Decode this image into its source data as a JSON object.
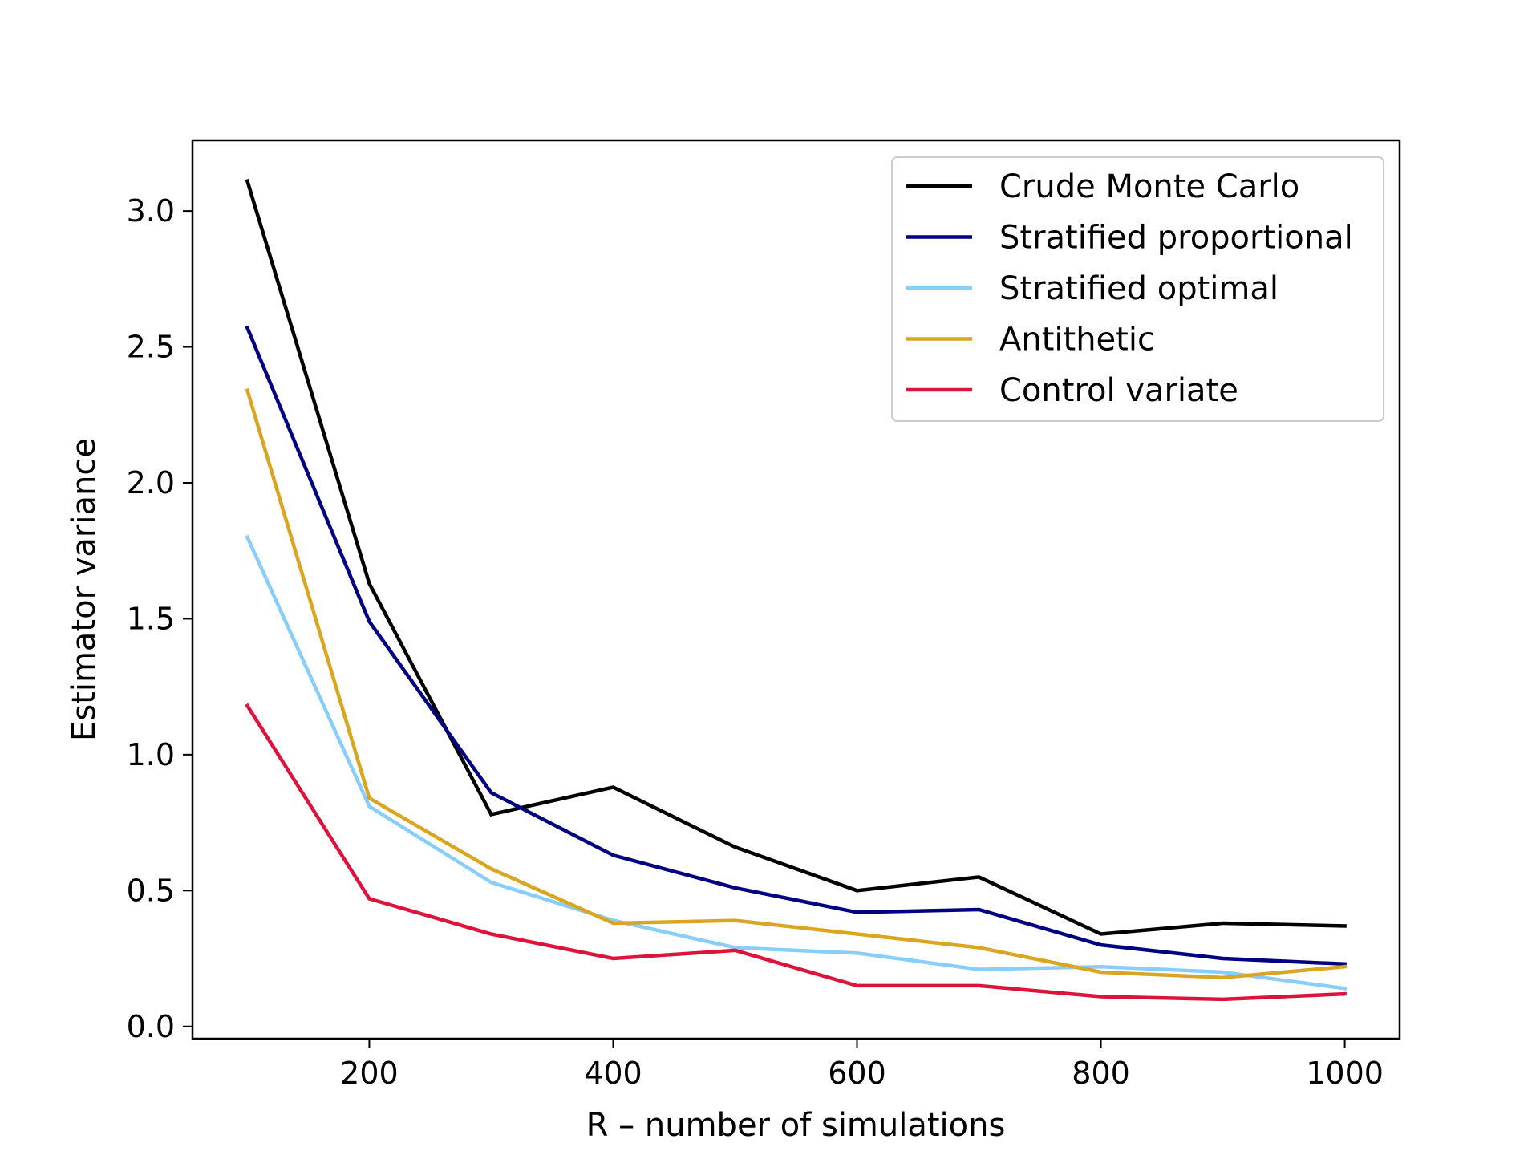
{
  "chart_data": {
    "type": "line",
    "title": "",
    "xlabel": "R – number of simulations",
    "ylabel": "Estimator variance",
    "x": [
      100,
      200,
      300,
      400,
      500,
      600,
      700,
      800,
      900,
      1000
    ],
    "xlim": [
      55,
      1045
    ],
    "ylim": [
      -0.045,
      3.26
    ],
    "xticks": [
      200,
      400,
      600,
      800,
      1000
    ],
    "xtick_labels": [
      "200",
      "400",
      "600",
      "800",
      "1000"
    ],
    "yticks": [
      0.0,
      0.5,
      1.0,
      1.5,
      2.0,
      2.5,
      3.0
    ],
    "ytick_labels": [
      "0.0",
      "0.5",
      "1.0",
      "1.5",
      "2.0",
      "2.5",
      "3.0"
    ],
    "grid": false,
    "legend_position": "top-right",
    "series": [
      {
        "name": "Crude Monte Carlo",
        "color": "#000000",
        "values": [
          3.11,
          1.63,
          0.78,
          0.88,
          0.66,
          0.5,
          0.55,
          0.34,
          0.38,
          0.37
        ]
      },
      {
        "name": "Stratified proportional",
        "color": "#000080",
        "values": [
          2.57,
          1.49,
          0.86,
          0.63,
          0.51,
          0.42,
          0.43,
          0.3,
          0.25,
          0.23
        ]
      },
      {
        "name": "Stratified optimal",
        "color": "#87CEFA",
        "values": [
          1.8,
          0.81,
          0.53,
          0.39,
          0.29,
          0.27,
          0.21,
          0.22,
          0.2,
          0.14
        ]
      },
      {
        "name": "Antithetic",
        "color": "#DAA520",
        "values": [
          2.34,
          0.84,
          0.58,
          0.38,
          0.39,
          0.34,
          0.29,
          0.2,
          0.18,
          0.22
        ]
      },
      {
        "name": "Control variate",
        "color": "#DC143C",
        "values": [
          1.18,
          0.47,
          0.34,
          0.25,
          0.28,
          0.15,
          0.15,
          0.11,
          0.1,
          0.12
        ]
      }
    ]
  }
}
